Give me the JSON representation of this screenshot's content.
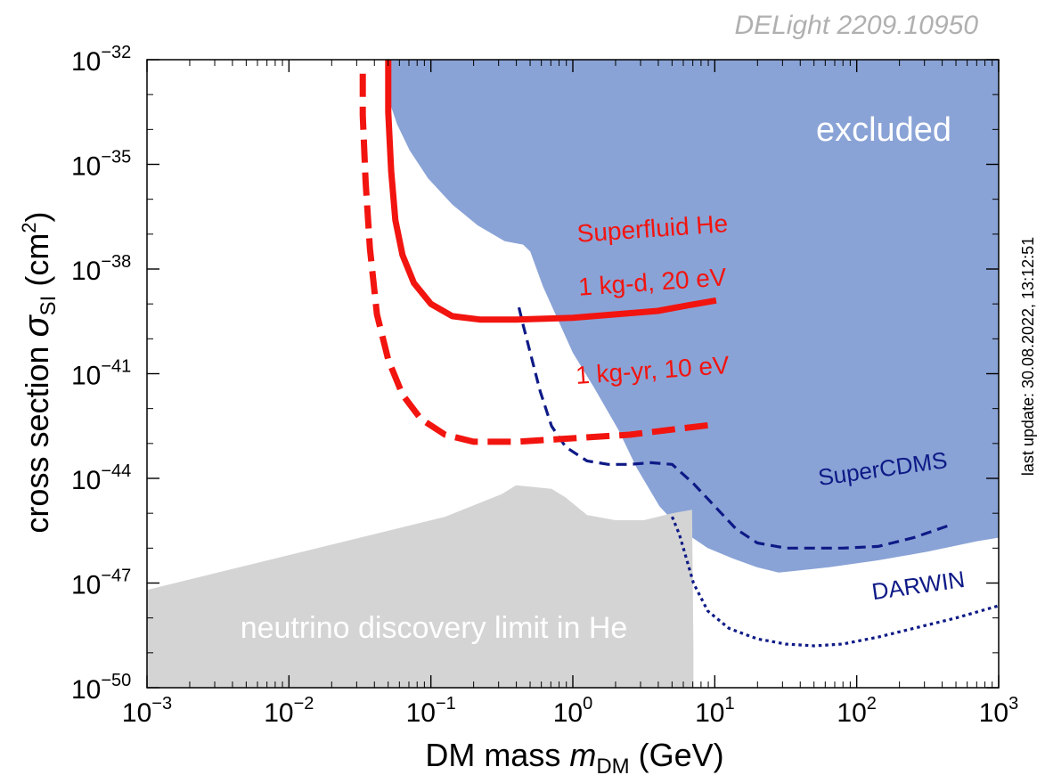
{
  "chart_data": {
    "type": "line",
    "title": "DELight 2209.10950",
    "xlabel": {
      "pre": "DM mass ",
      "var": "m",
      "sub": "DM",
      "post": " (GeV)"
    },
    "ylabel": {
      "pre": "cross section ",
      "var": "σ",
      "sub": "SI",
      "mid": " (cm",
      "sup": "2",
      "post": ")"
    },
    "x_scale": "log",
    "y_scale": "log",
    "xlim": [
      0.001,
      1000
    ],
    "ylim": [
      1e-50,
      1e-32
    ],
    "x_ticks": [
      {
        "value": 0.001,
        "base": "10",
        "exp": "−3"
      },
      {
        "value": 0.01,
        "base": "10",
        "exp": "−2"
      },
      {
        "value": 0.1,
        "base": "10",
        "exp": "−1"
      },
      {
        "value": 1,
        "base": "10",
        "exp": "0"
      },
      {
        "value": 10,
        "base": "10",
        "exp": "1"
      },
      {
        "value": 100,
        "base": "10",
        "exp": "2"
      },
      {
        "value": 1000,
        "base": "10",
        "exp": "3"
      }
    ],
    "y_ticks": [
      {
        "value": 1e-50,
        "base": "10",
        "exp": "−50"
      },
      {
        "value": 1e-47,
        "base": "10",
        "exp": "−47"
      },
      {
        "value": 1e-44,
        "base": "10",
        "exp": "−44"
      },
      {
        "value": 1e-41,
        "base": "10",
        "exp": "−41"
      },
      {
        "value": 1e-38,
        "base": "10",
        "exp": "−38"
      },
      {
        "value": 1e-35,
        "base": "10",
        "exp": "−35"
      },
      {
        "value": 1e-32,
        "base": "10",
        "exp": "−32"
      }
    ],
    "grid": false,
    "regions": [
      {
        "name": "excluded",
        "color": "#8aa3d6",
        "points": [
          [
            0.0501,
            -32
          ],
          [
            0.0501,
            -33.1
          ],
          [
            0.0578,
            -33.85
          ],
          [
            0.0708,
            -34.6
          ],
          [
            0.0955,
            -35.4
          ],
          [
            0.1413,
            -36.15
          ],
          [
            0.2138,
            -36.75
          ],
          [
            0.3311,
            -37.2
          ],
          [
            0.4467,
            -37.3
          ],
          [
            0.5012,
            -37.5
          ],
          [
            0.6166,
            -38.5
          ],
          [
            0.7943,
            -39.5
          ],
          [
            1.0,
            -40.4
          ],
          [
            1.4125,
            -41.4
          ],
          [
            2.0893,
            -42.6
          ],
          [
            2.8184,
            -43.7
          ],
          [
            4.0738,
            -44.8
          ],
          [
            5.8884,
            -45.5
          ],
          [
            8.9125,
            -46.0
          ],
          [
            13.4896,
            -46.3
          ],
          [
            19.9526,
            -46.55
          ],
          [
            28.1838,
            -46.7
          ],
          [
            63.0957,
            -46.55
          ],
          [
            141.2538,
            -46.35
          ],
          [
            316.2278,
            -46.1
          ],
          [
            707.9458,
            -45.8
          ],
          [
            1000,
            -45.7
          ],
          [
            1000,
            -32
          ]
        ]
      },
      {
        "name": "neutrino discovery limit in He",
        "color": "#d4d4d4",
        "points": [
          [
            0.001,
            -50
          ],
          [
            0.001,
            -47.2
          ],
          [
            0.00501,
            -46.5
          ],
          [
            0.02512,
            -45.8
          ],
          [
            0.1259,
            -45.1
          ],
          [
            0.3162,
            -44.45
          ],
          [
            0.3981,
            -44.2
          ],
          [
            0.7079,
            -44.3
          ],
          [
            0.8913,
            -44.55
          ],
          [
            1.2589,
            -45.05
          ],
          [
            2.0,
            -45.2
          ],
          [
            3.1623,
            -45.2
          ],
          [
            5.0119,
            -45.0
          ],
          [
            6.9183,
            -44.9
          ],
          [
            7.0795,
            -48.9
          ],
          [
            7.0795,
            -50
          ]
        ]
      }
    ],
    "series": [
      {
        "name": "SuperCDMS",
        "color": "#0e1a86",
        "style": "dashed",
        "points": [
          [
            0.4169,
            -39.1
          ],
          [
            0.4467,
            -39.6
          ],
          [
            0.5012,
            -40.4
          ],
          [
            0.5888,
            -41.5
          ],
          [
            0.7079,
            -42.5
          ],
          [
            0.8913,
            -43.1
          ],
          [
            1.2589,
            -43.5
          ],
          [
            1.7783,
            -43.6
          ],
          [
            2.5119,
            -43.6
          ],
          [
            3.5481,
            -43.55
          ],
          [
            5.0119,
            -43.6
          ],
          [
            7.0795,
            -44.15
          ],
          [
            10.0,
            -44.8
          ],
          [
            14.1254,
            -45.45
          ],
          [
            19.9526,
            -45.85
          ],
          [
            31.6228,
            -46.0
          ],
          [
            50.1187,
            -46.0
          ],
          [
            79.4328,
            -46.0
          ],
          [
            141.2538,
            -45.95
          ],
          [
            251.1886,
            -45.7
          ],
          [
            446.6836,
            -45.35
          ]
        ]
      },
      {
        "name": "DARWIN",
        "color": "#0e1a86",
        "style": "dotted",
        "points": [
          [
            5.0119,
            -45.1
          ],
          [
            5.6234,
            -45.6
          ],
          [
            6.3096,
            -46.3
          ],
          [
            7.0795,
            -47.0
          ],
          [
            8.9125,
            -47.8
          ],
          [
            12.5893,
            -48.3
          ],
          [
            19.9526,
            -48.6
          ],
          [
            31.6228,
            -48.75
          ],
          [
            50.1187,
            -48.8
          ],
          [
            79.4328,
            -48.75
          ],
          [
            141.2538,
            -48.55
          ],
          [
            251.1886,
            -48.3
          ],
          [
            501.1872,
            -48.0
          ],
          [
            1000,
            -47.65
          ]
        ]
      },
      {
        "name": "Superfluid He 1 kg-d, 20 eV",
        "color": "#f2140f",
        "style": "solid",
        "points": [
          [
            0.0501,
            -32
          ],
          [
            0.0501,
            -33.5
          ],
          [
            0.0525,
            -35.2
          ],
          [
            0.0562,
            -36.6
          ],
          [
            0.0631,
            -37.6
          ],
          [
            0.0759,
            -38.4
          ],
          [
            0.1,
            -39.0
          ],
          [
            0.1413,
            -39.35
          ],
          [
            0.2239,
            -39.45
          ],
          [
            0.3981,
            -39.45
          ],
          [
            1.0,
            -39.4
          ],
          [
            1.9953,
            -39.3
          ],
          [
            3.9811,
            -39.2
          ],
          [
            6.3096,
            -39.05
          ],
          [
            10.2329,
            -38.9
          ]
        ]
      },
      {
        "name": "Superfluid He 1 kg-yr, 10 eV",
        "color": "#f2140f",
        "style": "dashed",
        "points": [
          [
            0.0331,
            -32.4
          ],
          [
            0.0331,
            -33.6
          ],
          [
            0.0347,
            -35.5
          ],
          [
            0.0372,
            -37.4
          ],
          [
            0.0417,
            -39.3
          ],
          [
            0.0501,
            -40.6
          ],
          [
            0.0631,
            -41.6
          ],
          [
            0.0851,
            -42.3
          ],
          [
            0.1259,
            -42.75
          ],
          [
            0.1995,
            -42.95
          ],
          [
            0.3981,
            -42.95
          ],
          [
            1.0,
            -42.85
          ],
          [
            2.5119,
            -42.75
          ],
          [
            5.0119,
            -42.6
          ],
          [
            10.2329,
            -42.45
          ]
        ]
      }
    ],
    "annotations": [
      {
        "text": "excluded",
        "color": "#ffffff"
      },
      {
        "text": "Superfluid He",
        "color": "#f2140f"
      },
      {
        "text": "1 kg-d, 20 eV",
        "color": "#f2140f"
      },
      {
        "text": "1 kg-yr, 10 eV",
        "color": "#f2140f"
      },
      {
        "text": "SuperCDMS",
        "color": "#0e1a86"
      },
      {
        "text": "DARWIN",
        "color": "#0e1a86"
      },
      {
        "text": "neutrino discovery limit in He",
        "color": "#ffffff"
      }
    ],
    "side_note": "last update: 30.08.2022, 13:12:51"
  }
}
